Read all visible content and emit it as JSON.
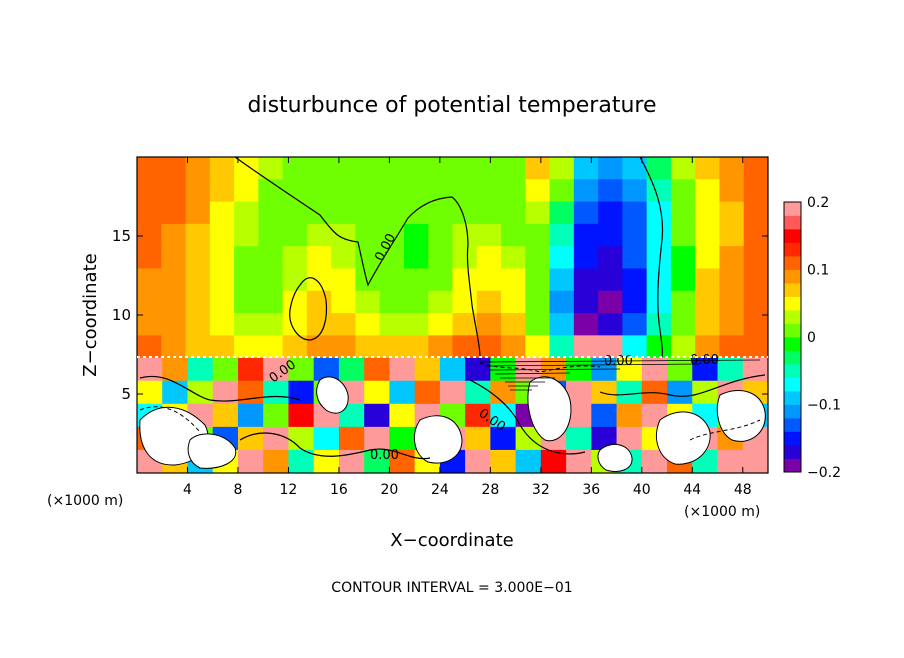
{
  "chart_data": {
    "type": "heatmap",
    "title": "disturbunce of potential temperature",
    "xlabel": "X−coordinate",
    "ylabel": "Z−coordinate",
    "x_unit_left": "(×1000 m)",
    "x_unit_right": "(×1000 m)",
    "xlim": [
      0,
      50
    ],
    "ylim": [
      0,
      20
    ],
    "x_ticks": [
      4,
      8,
      12,
      16,
      20,
      24,
      28,
      32,
      36,
      40,
      44,
      48
    ],
    "y_ticks": [
      5,
      10,
      15
    ],
    "contour_label": "0.00",
    "footer": "CONTOUR INTERVAL = 3.000E−01",
    "colorbar": {
      "range": [
        -0.2,
        0.2
      ],
      "ticks": [
        {
          "value": 0.2,
          "label": "0.2"
        },
        {
          "value": 0.1,
          "label": "0.1"
        },
        {
          "value": 0,
          "label": "0"
        },
        {
          "value": -0.1,
          "label": "−0.1"
        },
        {
          "value": -0.2,
          "label": "−0.2"
        }
      ],
      "colors": [
        "#7a00a8",
        "#2800d8",
        "#0014ff",
        "#0058ff",
        "#0098ff",
        "#00c8ff",
        "#00ffff",
        "#00ffb8",
        "#00ff60",
        "#00ff00",
        "#70ff00",
        "#b8ff00",
        "#ffff00",
        "#ffc800",
        "#ff9600",
        "#ff6400",
        "#ff2800",
        "#ff0000",
        "#ff5a5a",
        "#ff9a9a"
      ]
    },
    "upper_field": [
      [
        0.12,
        0.11,
        0.09,
        0.06,
        0.04,
        0.03,
        0.01,
        0.0,
        0.0,
        0.02,
        0.02,
        0.01,
        0.01,
        0.0,
        0.0,
        0.0,
        0.06,
        0.03,
        -0.09,
        -0.12,
        -0.09,
        -0.03,
        0.03,
        0.06,
        0.08,
        0.11
      ],
      [
        0.12,
        0.1,
        0.08,
        0.06,
        0.04,
        0.02,
        0.01,
        0.01,
        0.01,
        0.02,
        0.02,
        0.01,
        0.0,
        0.01,
        0.01,
        0.01,
        0.05,
        0.0,
        -0.11,
        -0.14,
        -0.11,
        -0.05,
        0.02,
        0.05,
        0.08,
        0.11
      ],
      [
        0.11,
        0.1,
        0.08,
        0.05,
        0.03,
        0.01,
        0.01,
        0.02,
        0.02,
        0.02,
        0.01,
        0.0,
        0.0,
        0.02,
        0.02,
        0.01,
        0.03,
        -0.03,
        -0.13,
        -0.15,
        -0.13,
        -0.07,
        0.01,
        0.04,
        0.07,
        0.1
      ],
      [
        0.1,
        0.09,
        0.07,
        0.05,
        0.03,
        0.01,
        0.02,
        0.03,
        0.03,
        0.02,
        0.0,
        -0.01,
        0.01,
        0.03,
        0.03,
        0.02,
        0.01,
        -0.06,
        -0.15,
        -0.16,
        -0.14,
        -0.08,
        0.0,
        0.04,
        0.07,
        0.1
      ],
      [
        0.1,
        0.09,
        0.07,
        0.05,
        0.02,
        0.01,
        0.03,
        0.04,
        0.03,
        0.02,
        0.0,
        -0.01,
        0.01,
        0.03,
        0.04,
        0.03,
        0.0,
        -0.08,
        -0.16,
        -0.17,
        -0.14,
        -0.08,
        -0.01,
        0.05,
        0.08,
        0.1
      ],
      [
        0.09,
        0.08,
        0.07,
        0.04,
        0.02,
        0.01,
        0.03,
        0.05,
        0.04,
        0.02,
        0.0,
        0.0,
        0.02,
        0.04,
        0.05,
        0.04,
        0.0,
        -0.1,
        -0.17,
        -0.18,
        -0.15,
        -0.08,
        -0.01,
        0.06,
        0.08,
        0.1
      ],
      [
        0.09,
        0.08,
        0.06,
        0.04,
        0.02,
        0.02,
        0.04,
        0.06,
        0.05,
        0.03,
        0.01,
        0.01,
        0.03,
        0.05,
        0.06,
        0.05,
        0.0,
        -0.11,
        -0.18,
        -0.19,
        -0.15,
        -0.07,
        0.0,
        0.06,
        0.09,
        0.1
      ],
      [
        0.09,
        0.08,
        0.06,
        0.04,
        0.03,
        0.03,
        0.05,
        0.07,
        0.07,
        0.04,
        0.03,
        0.03,
        0.04,
        0.07,
        0.08,
        0.06,
        0.01,
        -0.1,
        -0.2,
        -0.18,
        -0.13,
        -0.05,
        0.01,
        0.07,
        0.09,
        0.1
      ],
      [
        0.1,
        0.09,
        0.07,
        0.06,
        0.05,
        0.05,
        0.07,
        0.09,
        0.09,
        0.07,
        0.06,
        0.07,
        0.09,
        0.12,
        0.12,
        0.08,
        0.04,
        -0.05,
        0.2,
        0.2,
        -0.08,
        -0.02,
        0.03,
        0.08,
        0.1,
        0.11
      ]
    ],
    "lower_field": [
      [
        0.2,
        0.08,
        -0.05,
        0.02,
        0.13,
        0.2,
        0.0,
        -0.14,
        -0.03,
        0.12,
        0.2,
        0.06,
        -0.1,
        -0.18,
        -0.02,
        0.2,
        0.09,
        -0.02,
        -0.11,
        0.04,
        0.2,
        0.02,
        -0.16,
        -0.05,
        0.2
      ],
      [
        0.05,
        -0.1,
        0.03,
        0.2,
        0.1,
        -0.04,
        -0.16,
        0.02,
        0.2,
        0.04,
        -0.09,
        0.12,
        0.2,
        -0.06,
        0.08,
        0.01,
        -0.13,
        0.2,
        0.07,
        -0.05,
        0.11,
        -0.12,
        0.03,
        0.2,
        0.06
      ],
      [
        -0.08,
        0.04,
        0.2,
        0.06,
        -0.12,
        0.0,
        0.14,
        0.2,
        -0.05,
        -0.17,
        0.05,
        0.2,
        0.01,
        0.13,
        -0.08,
        -0.2,
        0.05,
        0.2,
        -0.14,
        0.09,
        0.2,
        0.04,
        -0.07,
        0.02,
        -0.1
      ],
      [
        0.1,
        0.2,
        0.01,
        -0.13,
        0.06,
        0.2,
        0.03,
        -0.08,
        0.11,
        0.2,
        -0.02,
        -0.11,
        0.2,
        0.06,
        -0.15,
        0.03,
        0.2,
        -0.04,
        -0.18,
        0.2,
        0.05,
        -0.13,
        0.2,
        0.08,
        0.2
      ],
      [
        0.2,
        0.06,
        -0.09,
        0.04,
        0.2,
        0.09,
        -0.06,
        0.05,
        0.2,
        -0.03,
        0.12,
        0.04,
        -0.16,
        0.2,
        0.07,
        -0.09,
        0.14,
        0.2,
        0.03,
        -0.06,
        0.2,
        0.11,
        -0.04,
        0.2,
        0.2
      ]
    ]
  }
}
